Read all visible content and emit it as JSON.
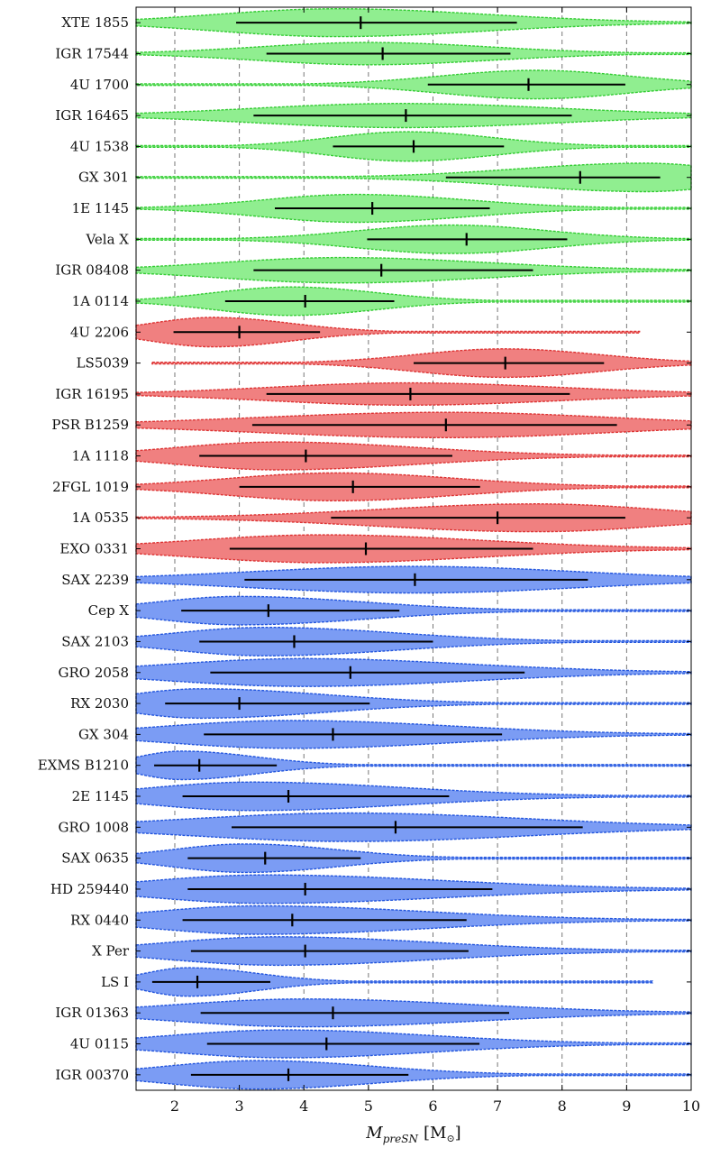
{
  "chart_data": {
    "type": "violin",
    "xlabel_main": "M",
    "xlabel_sub": "preSN",
    "xlabel_unit_open": "[M",
    "xlabel_unit_sym": "⊙",
    "xlabel_unit_close": "]",
    "xlim": [
      1.4,
      10
    ],
    "xticks": [
      2,
      3,
      4,
      5,
      6,
      7,
      8,
      9,
      10
    ],
    "grid_x": [
      2,
      3,
      4,
      5,
      6,
      7,
      8,
      9
    ],
    "colors": {
      "green_fill": "#90ee90",
      "green_edge": "#33cc33",
      "red_fill": "#f08080",
      "red_edge": "#dd3333",
      "blue_fill": "#7b9cf4",
      "blue_edge": "#2255dd"
    },
    "systems": [
      {
        "name": "XTE 1855",
        "group": "green",
        "median": 4.88,
        "lo": 2.95,
        "hi": 7.3,
        "peak": 4.5,
        "w": 0.9,
        "xmin": 1.4,
        "xmax": 10
      },
      {
        "name": "IGR 17544",
        "group": "green",
        "median": 5.22,
        "lo": 3.42,
        "hi": 7.2,
        "peak": 5.0,
        "w": 0.72,
        "xmin": 1.4,
        "xmax": 10
      },
      {
        "name": "4U 1700",
        "group": "green",
        "median": 7.48,
        "lo": 5.92,
        "hi": 8.98,
        "peak": 7.6,
        "w": 0.92,
        "xmin": 1.4,
        "xmax": 10
      },
      {
        "name": "IGR 16465",
        "group": "green",
        "median": 5.58,
        "lo": 3.22,
        "hi": 8.15,
        "peak": 5.5,
        "w": 0.78,
        "xmin": 1.4,
        "xmax": 10
      },
      {
        "name": "4U 1538",
        "group": "green",
        "median": 5.7,
        "lo": 4.45,
        "hi": 7.1,
        "peak": 5.6,
        "w": 0.95,
        "xmin": 1.4,
        "xmax": 10
      },
      {
        "name": "GX 301",
        "group": "green",
        "median": 8.28,
        "lo": 6.2,
        "hi": 9.52,
        "peak": 9.3,
        "w": 0.92,
        "xmin": 1.4,
        "xmax": 10
      },
      {
        "name": "1E 1145",
        "group": "green",
        "median": 5.06,
        "lo": 3.55,
        "hi": 6.88,
        "peak": 4.8,
        "w": 0.9,
        "xmin": 1.4,
        "xmax": 10
      },
      {
        "name": "Vela X",
        "group": "green",
        "median": 6.52,
        "lo": 4.98,
        "hi": 8.08,
        "peak": 6.3,
        "w": 0.92,
        "xmin": 1.4,
        "xmax": 10
      },
      {
        "name": "IGR 08408",
        "group": "green",
        "median": 5.2,
        "lo": 3.22,
        "hi": 7.55,
        "peak": 4.6,
        "w": 0.82,
        "xmin": 1.4,
        "xmax": 10
      },
      {
        "name": "1A 0114",
        "group": "green",
        "median": 4.02,
        "lo": 2.78,
        "hi": 5.4,
        "peak": 3.8,
        "w": 0.92,
        "xmin": 1.4,
        "xmax": 10
      },
      {
        "name": "4U 2206",
        "group": "red",
        "median": 3.0,
        "lo": 1.98,
        "hi": 4.25,
        "peak": 2.6,
        "w": 0.95,
        "xmin": 1.4,
        "xmax": 9.2
      },
      {
        "name": "LS5039",
        "group": "red",
        "median": 7.12,
        "lo": 5.7,
        "hi": 8.65,
        "peak": 7.1,
        "w": 0.92,
        "xmin": 1.65,
        "xmax": 10
      },
      {
        "name": "IGR 16195",
        "group": "red",
        "median": 5.65,
        "lo": 3.42,
        "hi": 8.12,
        "peak": 5.6,
        "w": 0.72,
        "xmin": 1.4,
        "xmax": 10
      },
      {
        "name": "PSR B1259",
        "group": "red",
        "median": 6.2,
        "lo": 3.2,
        "hi": 8.85,
        "peak": 6.2,
        "w": 0.82,
        "xmin": 1.4,
        "xmax": 10
      },
      {
        "name": "1A 1118",
        "group": "red",
        "median": 4.03,
        "lo": 2.38,
        "hi": 6.3,
        "peak": 3.6,
        "w": 0.9,
        "xmin": 1.4,
        "xmax": 10
      },
      {
        "name": "2FGL 1019",
        "group": "red",
        "median": 4.76,
        "lo": 3.0,
        "hi": 6.73,
        "peak": 4.5,
        "w": 0.9,
        "xmin": 1.4,
        "xmax": 10
      },
      {
        "name": "1A 0535",
        "group": "red",
        "median": 7.0,
        "lo": 4.42,
        "hi": 8.98,
        "peak": 7.6,
        "w": 0.9,
        "xmin": 1.4,
        "xmax": 10
      },
      {
        "name": "EXO 0331",
        "group": "red",
        "median": 4.96,
        "lo": 2.85,
        "hi": 7.55,
        "peak": 4.3,
        "w": 0.9,
        "xmin": 1.4,
        "xmax": 10
      },
      {
        "name": "SAX 2239",
        "group": "blue",
        "median": 5.72,
        "lo": 3.08,
        "hi": 8.4,
        "peak": 5.7,
        "w": 0.86,
        "xmin": 1.4,
        "xmax": 10
      },
      {
        "name": "Cep X",
        "group": "blue",
        "median": 3.45,
        "lo": 2.1,
        "hi": 5.48,
        "peak": 3.0,
        "w": 0.92,
        "xmin": 1.4,
        "xmax": 10
      },
      {
        "name": "SAX 2103",
        "group": "blue",
        "median": 3.85,
        "lo": 2.38,
        "hi": 6.0,
        "peak": 3.4,
        "w": 0.92,
        "xmin": 1.4,
        "xmax": 10
      },
      {
        "name": "GRO 2058",
        "group": "blue",
        "median": 4.72,
        "lo": 2.55,
        "hi": 7.42,
        "peak": 4.0,
        "w": 0.9,
        "xmin": 1.4,
        "xmax": 10
      },
      {
        "name": "RX 2030",
        "group": "blue",
        "median": 3.0,
        "lo": 1.85,
        "hi": 5.02,
        "peak": 2.4,
        "w": 0.95,
        "xmin": 1.4,
        "xmax": 10
      },
      {
        "name": "GX 304",
        "group": "blue",
        "median": 4.45,
        "lo": 2.45,
        "hi": 7.07,
        "peak": 3.8,
        "w": 0.9,
        "xmin": 1.4,
        "xmax": 10
      },
      {
        "name": "EXMS B1210",
        "group": "blue",
        "median": 2.38,
        "lo": 1.68,
        "hi": 3.58,
        "peak": 2.1,
        "w": 0.92,
        "xmin": 1.4,
        "xmax": 10
      },
      {
        "name": "2E 1145",
        "group": "blue",
        "median": 3.76,
        "lo": 2.12,
        "hi": 6.25,
        "peak": 3.2,
        "w": 0.92,
        "xmin": 1.4,
        "xmax": 10
      },
      {
        "name": "GRO 1008",
        "group": "blue",
        "median": 5.42,
        "lo": 2.88,
        "hi": 8.32,
        "peak": 4.7,
        "w": 0.92,
        "xmin": 1.4,
        "xmax": 10
      },
      {
        "name": "SAX 0635",
        "group": "blue",
        "median": 3.4,
        "lo": 2.2,
        "hi": 4.88,
        "peak": 3.1,
        "w": 0.92,
        "xmin": 1.4,
        "xmax": 10
      },
      {
        "name": "HD 259440",
        "group": "blue",
        "median": 4.02,
        "lo": 2.2,
        "hi": 6.92,
        "peak": 3.4,
        "w": 0.92,
        "xmin": 1.4,
        "xmax": 10
      },
      {
        "name": "RX 0440",
        "group": "blue",
        "median": 3.82,
        "lo": 2.12,
        "hi": 6.52,
        "peak": 3.3,
        "w": 0.92,
        "xmin": 1.4,
        "xmax": 10
      },
      {
        "name": "X Per",
        "group": "blue",
        "median": 4.02,
        "lo": 2.25,
        "hi": 6.55,
        "peak": 3.6,
        "w": 0.92,
        "xmin": 1.4,
        "xmax": 10
      },
      {
        "name": "LS I",
        "group": "blue",
        "median": 2.35,
        "lo": 1.65,
        "hi": 3.48,
        "peak": 2.2,
        "w": 0.92,
        "xmin": 1.4,
        "xmax": 9.4
      },
      {
        "name": "IGR 01363",
        "group": "blue",
        "median": 4.45,
        "lo": 2.4,
        "hi": 7.18,
        "peak": 4.0,
        "w": 0.9,
        "xmin": 1.4,
        "xmax": 10
      },
      {
        "name": "4U 0115",
        "group": "blue",
        "median": 4.35,
        "lo": 2.5,
        "hi": 6.72,
        "peak": 3.7,
        "w": 0.9,
        "xmin": 1.4,
        "xmax": 10
      },
      {
        "name": "IGR 00370",
        "group": "blue",
        "median": 3.76,
        "lo": 2.25,
        "hi": 5.62,
        "peak": 3.3,
        "w": 0.92,
        "xmin": 1.4,
        "xmax": 10
      }
    ]
  }
}
